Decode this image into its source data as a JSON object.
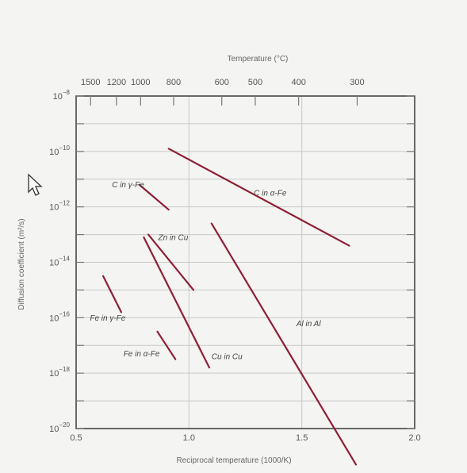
{
  "chart_data": {
    "type": "line",
    "title": "",
    "xlabel": "Reciprocal temperature (1000/K)",
    "ylabel": "Diffusion coefficient (m²/s)",
    "top_axis_label": "Temperature (°C)",
    "xlim": [
      0.5,
      2.0
    ],
    "ylim_exponent": [
      -20,
      -8
    ],
    "y_scale": "log10",
    "grid": true,
    "x_ticks": [
      {
        "value": 0.5,
        "label": "0.5"
      },
      {
        "value": 1.0,
        "label": "1.0"
      },
      {
        "value": 1.5,
        "label": "1.5"
      },
      {
        "value": 2.0,
        "label": "2.0"
      }
    ],
    "y_ticks": [
      {
        "exp": -8,
        "base": "10",
        "sup": "−8"
      },
      {
        "exp": -10,
        "base": "10",
        "sup": "−10"
      },
      {
        "exp": -12,
        "base": "10",
        "sup": "−12"
      },
      {
        "exp": -14,
        "base": "10",
        "sup": "−14"
      },
      {
        "exp": -16,
        "base": "10",
        "sup": "−16"
      },
      {
        "exp": -18,
        "base": "10",
        "sup": "−18"
      },
      {
        "exp": -20,
        "base": "10",
        "sup": "−20"
      }
    ],
    "top_ticks": [
      {
        "celsius": 1500,
        "label": "1500"
      },
      {
        "celsius": 1200,
        "label": "1200"
      },
      {
        "celsius": 1000,
        "label": "1000"
      },
      {
        "celsius": 800,
        "label": "800"
      },
      {
        "celsius": 600,
        "label": "600"
      },
      {
        "celsius": 500,
        "label": "500"
      },
      {
        "celsius": 400,
        "label": "400"
      },
      {
        "celsius": 300,
        "label": "300"
      }
    ],
    "series_color": "#8e1f35",
    "series": [
      {
        "name": "C in α-Fe",
        "x": [
          0.91,
          1.71
        ],
        "log_y": [
          -9.9,
          -13.4
        ]
      },
      {
        "name": "C in γ-Fe",
        "x": [
          0.78,
          0.91
        ],
        "log_y": [
          -11.2,
          -12.1
        ]
      },
      {
        "name": "Zn in Cu",
        "x": [
          0.82,
          1.02
        ],
        "log_y": [
          -13.0,
          -15.0
        ]
      },
      {
        "name": "Fe in γ-Fe",
        "x": [
          0.62,
          0.7
        ],
        "log_y": [
          -14.5,
          -15.8
        ]
      },
      {
        "name": "Fe in α-Fe",
        "x": [
          0.86,
          0.94
        ],
        "log_y": [
          -16.5,
          -17.5
        ]
      },
      {
        "name": "Cu in Cu",
        "x": [
          0.8,
          1.09
        ],
        "log_y": [
          -13.1,
          -17.8
        ]
      },
      {
        "name": "Al in Al",
        "x": [
          1.1,
          1.74
        ],
        "log_y": [
          -12.6,
          -21.3
        ]
      }
    ]
  }
}
